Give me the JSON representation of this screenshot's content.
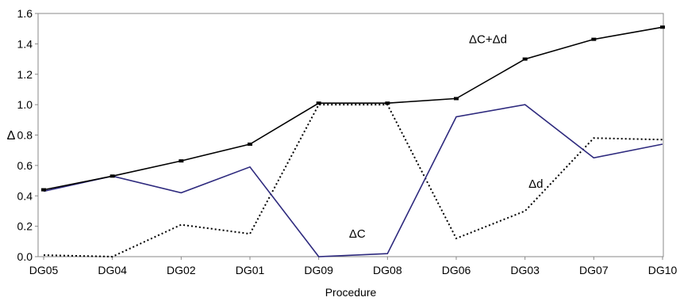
{
  "chart_data": {
    "type": "line",
    "title": "",
    "xlabel": "Procedure",
    "ylabel": "Δ",
    "ylim": [
      0,
      1.6
    ],
    "yticks": [
      "0.0",
      "0.2",
      "0.4",
      "0.6",
      "0.8",
      "1.0",
      "1.2",
      "1.4",
      "1.6"
    ],
    "categories": [
      "DG05",
      "DG04",
      "DG02",
      "DG01",
      "DG09",
      "DG08",
      "DG06",
      "DG03",
      "DG07",
      "DG10"
    ],
    "grid": false,
    "series": [
      {
        "name": "ΔC+Δd",
        "color": "#000000",
        "style": "solid",
        "values": [
          0.44,
          0.53,
          0.63,
          0.74,
          1.01,
          1.01,
          1.04,
          1.3,
          1.43,
          1.51
        ]
      },
      {
        "name": "ΔC",
        "color": "#2e2a7e",
        "style": "solid",
        "values": [
          0.43,
          0.53,
          0.42,
          0.59,
          0.0,
          0.02,
          0.92,
          1.0,
          0.65,
          0.74
        ]
      },
      {
        "name": "Δd",
        "color": "#000000",
        "style": "dotted",
        "values": [
          0.01,
          0.0,
          0.21,
          0.15,
          1.0,
          1.0,
          0.12,
          0.3,
          0.78,
          0.77
        ]
      }
    ]
  }
}
